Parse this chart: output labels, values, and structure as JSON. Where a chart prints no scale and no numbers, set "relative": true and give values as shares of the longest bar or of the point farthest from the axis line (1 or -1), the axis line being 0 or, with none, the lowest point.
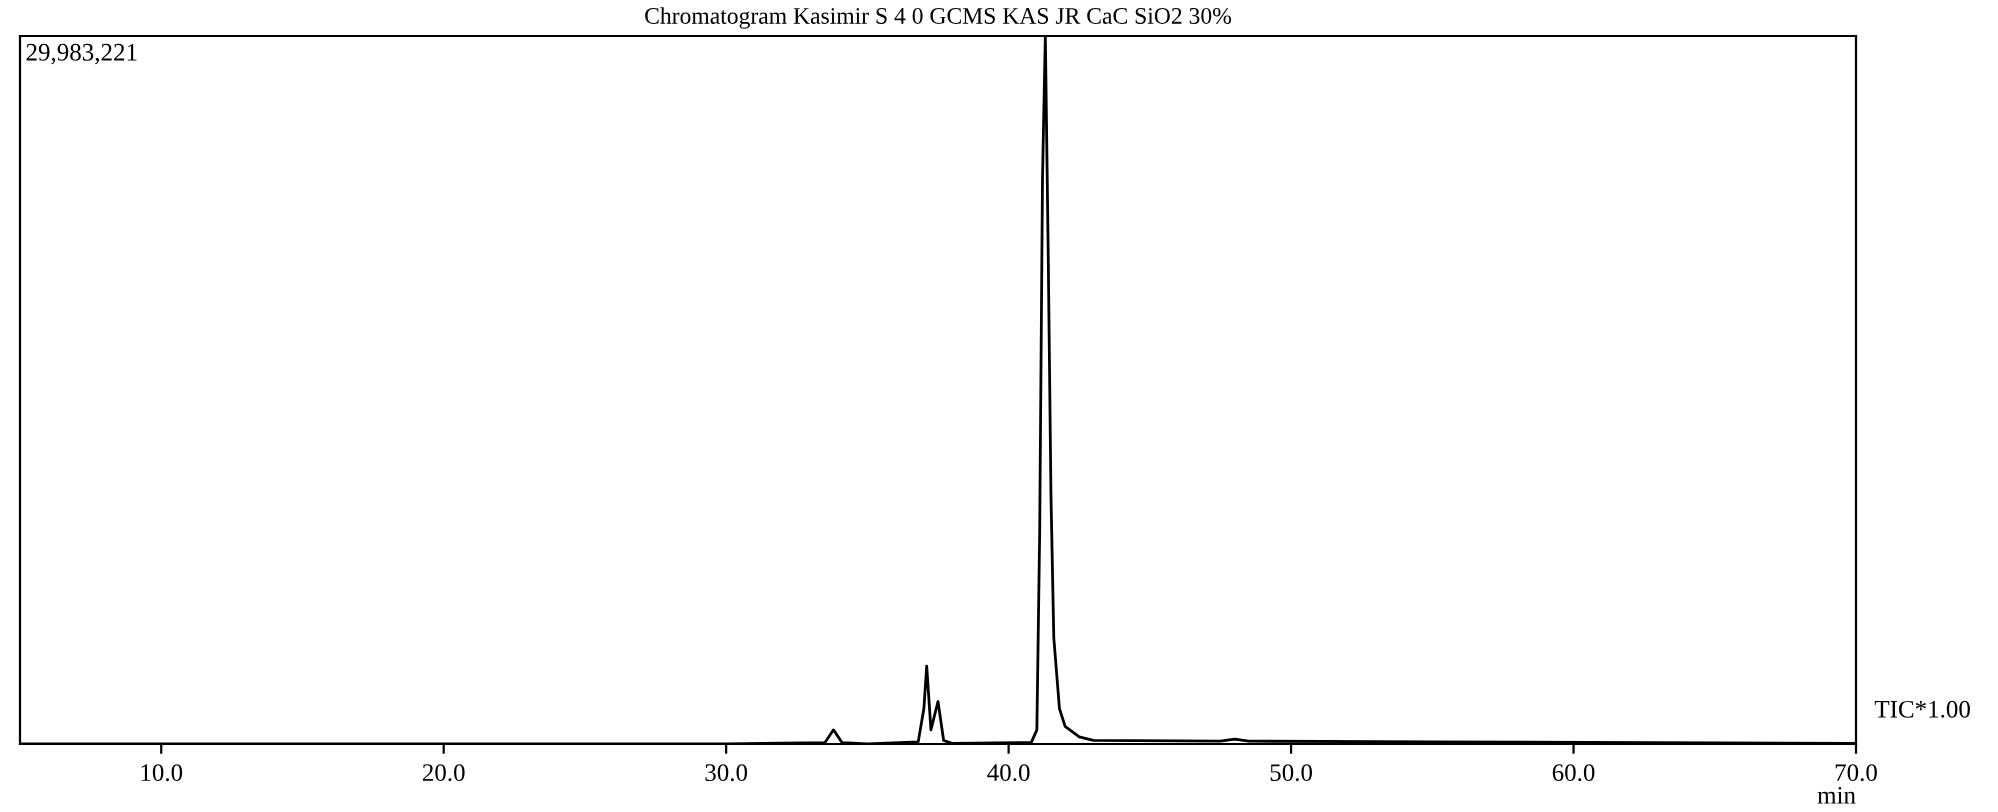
{
  "chart_data": {
    "type": "line",
    "title": "Chromatogram Kasimir S 4 0 GCMS KAS JR CaC SiO2 30%",
    "xlabel": "min",
    "relative": true,
    "annotations": [
      "29,983,221",
      "TIC*1.00"
    ],
    "x": [
      5,
      30,
      33.5,
      33.8,
      34.1,
      35,
      36.8,
      37.0,
      37.1,
      37.25,
      37.5,
      37.7,
      38,
      40.8,
      41.0,
      41.1,
      41.2,
      41.3,
      41.4,
      41.5,
      41.6,
      41.8,
      42.0,
      42.5,
      43,
      47.5,
      48,
      48.5,
      55,
      70
    ],
    "series": [
      {
        "color": "#000000",
        "values": [
          0,
          0,
          0.002,
          0.02,
          0.002,
          0,
          0.003,
          0.05,
          0.11,
          0.02,
          0.06,
          0.005,
          0.001,
          0.002,
          0.02,
          0.3,
          0.8,
          1.0,
          0.7,
          0.35,
          0.15,
          0.05,
          0.025,
          0.01,
          0.005,
          0.004,
          0.007,
          0.004,
          0.003,
          0.001
        ]
      }
    ],
    "xlim": [
      5,
      70
    ],
    "xticks": [
      {
        "value": 10,
        "label": "10.0"
      },
      {
        "value": 20,
        "label": "20.0"
      },
      {
        "value": 30,
        "label": "30.0"
      },
      {
        "value": 40,
        "label": "40.0"
      },
      {
        "value": 50,
        "label": "50.0"
      },
      {
        "value": 60,
        "label": "60.0"
      },
      {
        "value": 70,
        "label": "70.0"
      }
    ],
    "grid": false,
    "tick_labels": "x"
  }
}
